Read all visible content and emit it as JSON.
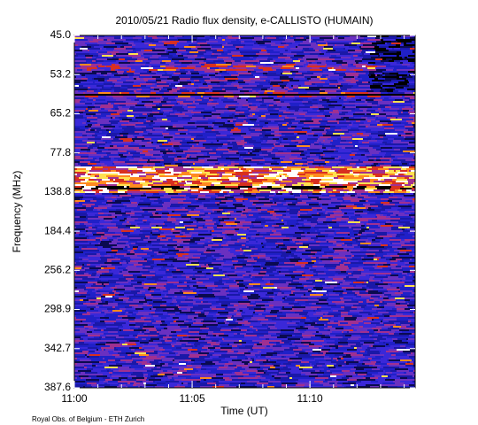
{
  "chart_data": {
    "type": "spectrogram",
    "title": "2010/05/21  Radio flux density, e-CALLISTO (HUMAIN)",
    "x_label": "Time (UT)",
    "y_label": "Frequency (MHz)",
    "footer": "Royal Obs. of Belgium - ETH Zurich",
    "y_categories": [
      "45.0",
      "53.2",
      "65.2",
      "77.8",
      "138.8",
      "184.4",
      "256.2",
      "298.9",
      "342.7",
      "387.6"
    ],
    "xlim": [
      "11:00",
      "11:14:28"
    ],
    "xticks": [
      "11:00",
      "11:05",
      "11:10"
    ]
  }
}
